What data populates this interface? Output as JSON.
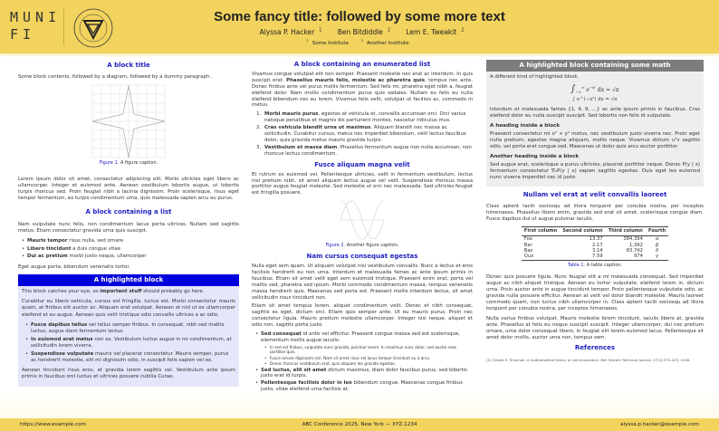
{
  "header": {
    "logo_line1": "MUNI",
    "logo_line2": "FI",
    "seal_text": "FACULTAS INFORMATICAE UNIVERSITATIS MASARYKIANAE BRUNENSIS",
    "title": "Some fancy title: followed by some more text",
    "authors": [
      {
        "name": "Alyssa P. Hacker",
        "aff": "1"
      },
      {
        "name": "Ben Bitdiddle",
        "aff": "2"
      },
      {
        "name": "Lem E. Tweakit",
        "aff": "2"
      }
    ],
    "institutes": [
      {
        "num": "1",
        "name": "Some Institute"
      },
      {
        "num": "2",
        "name": "Another Institute"
      }
    ]
  },
  "col1": {
    "block1": {
      "title": "A block title",
      "intro": "Some block contents, followed by a diagram, followed by a dummy paragraph.",
      "fig_label": "Figure 1.",
      "fig_caption": "A figure caption.",
      "para": "Lorem ipsum dolor sit amet, consectetur adipiscing elit. Morbi ultricies eget libero ac ullamcorper. Integer et euismod ante. Aenean vestibulum lobortis augue, ut lobortis turpis rhoncus sed. Proin feugiat nibh a lacinia dignissim. Proin scelerisque, risus eget tempor fermentum, ex turpis condimentum urna, quis malesuada sapien arcu eu purus."
    },
    "block2": {
      "title": "A block containing a list",
      "intro": "Nam vulputate nunc felis, non condimentum lacus porta ultrices. Nullam sed sagittis metus. Etiam consectetur gravida urna quis suscipit.",
      "items": [
        {
          "b": "Mauris tempor",
          "t": " risus nulla, sed ornare"
        },
        {
          "b": "Libero tincidunt",
          "t": " a duis congue vitae"
        },
        {
          "b": "Dui ac pretium",
          "t": " morbi justo neque, ullamcorper"
        }
      ],
      "outro": "Eget augue porta, bibendum venenatis tortor."
    },
    "hblock": {
      "title": "A highlighted block",
      "p1a": "This block catches your eye, so ",
      "p1b": "important stuff",
      "p1c": " should probably go here.",
      "p2": "Curabitur eu libero vehicula, cursus est fringilla, luctus est. Morbi consectetur mauris quam, at finibus elit auctor ac. Aliquam erat volutpat. Aenean at nisl ut ex ullamcorper eleifend et eu augue. Aenean quis velit tristique odio convallis ultrices a ac odio.",
      "items": [
        {
          "b": "Fusce dapibus tellus",
          "t": " vel tellus semper finibus. In consequat, nibh sed mattis luctus, augue diam fermentum lectus."
        },
        {
          "b": "In euismod erat metus",
          "t": " non ex. Vestibulum luctus augue in mi condimentum, at sollicitudin lorem viverra."
        },
        {
          "b": "Suspendisse vulputate",
          "t": " mauris vel placerat consectetur. Mauris semper, purus ac hendrerit molestie, elit mi dignissim odio, in suscipit felis sapien vel ex."
        }
      ],
      "p3": "Aenean tincidunt risus eros, at gravida lorem sagittis vel. Vestibulum ante ipsum primis in faucibus orci luctus et ultrices posuere cubilia Curae."
    }
  },
  "col2": {
    "block1": {
      "title": "A block containing an enumerated list",
      "pa": "Vivamus congue volutpat elit non semper. Praesent molestie nec erat ac interdum. In quis suscipit erat. ",
      "pb": "Phasellus mauris felis, molestie ac pharetra quis",
      "pc": ", tempus nec ante. Donec finibus ante vel purus mollis fermentum. Sed felis mi, pharetra eget nibh a, feugiat eleifend dolor. Nam mollis condimentum purus quis sodales. Nullam eu felis eu nulla eleifend bibendum nec eu lorem. Vivamus felis velit, volutpat ut facilisis ac, commodo in metus.",
      "items": [
        {
          "b": "Morbi mauris purus",
          "t": ", egestas at vehicula et, convallis accumsan orci. Orci varius natoque penatibus et magnis dis parturient montes, nascetur ridiculus mus."
        },
        {
          "b": "Cras vehicula blandit urna ut maximus",
          "t": ". Aliquam blandit nec massa ac sollicitudin. Curabitur cursus, metus nec imperdiet bibendum, velit lectus faucibus dolor, quis gravida metus mauris gravida turpis."
        },
        {
          "b": "Vestibulum et massa diam",
          "t": ". Phasellus fermentum augue non nulla accumsan, non rhoncus lectus condimentum."
        }
      ]
    },
    "block2": {
      "title": "Fusce aliquam magna velit",
      "para": "Et rutrum ex euismod vel. Pellentesque ultricies, velit in fermentum vestibulum, lectus nisi pretium nibh, sit amet aliquam lectus augue vel velit. Suspendisse rhoncus massa porttitor augue feugiat molestie. Sed molestie ut orci nec malesuada. Sed ultricies feugiat est fringilla posuere.",
      "fig_label": "Figure 2.",
      "fig_caption": "Another figure caption."
    },
    "block3": {
      "title": "Nam cursus consequat egestas",
      "p1": "Nulla eget sem quam. Ut aliquam volutpat nisi vestibulum convallis. Nunc a lectus et eros facilisis hendrerit eu non urna. Interdum et malesuada fames ac ante ipsum primis in faucibus. Etiam sit amet velit eget sem euismod tristique. Praesent enim erat, porta vel mattis sed, pharetra sed ipsum. Morbi commodo condimentum massa, tempus venenatis massa hendrerit quis. Maecenas sed porta est. Praesent mollis interdum lectus, sit amet sollicitudin risus tincidunt non.",
      "p2": "Etiam sit amet tempus lorem, aliquet condimentum velit. Donec et nibh consequat, sagittis ex eget, dictum orci. Etiam quis semper ante. Ut eu mauris purus. Proin nec consectetur ligula. Mauris pretium molestie ullamcorper. Integer nisi neque, aliquet et odio non, sagittis porta justo.",
      "items": [
        {
          "b": "Sed consequat",
          "t": " id ante vel efficitur. Praesent congue massa sed est scelerisque, elementum mollis augue iaculis.",
          "sub": [
            "In sed est finibus, vulputate nunc gravida, pulvinar lorem. In maximus nunc dolor, sed auctor eros porttitor quis.",
            "Fusce ornare dignissim nisi. Nam sit amet risus vel lacus tempor tincidunt eu a arcu.",
            "Donec rhoncus vestibulum erat, quis aliquam leo gravida egestas."
          ]
        },
        {
          "b": "Sed luctus, elit sit amet",
          "t": " dictum maximus, diam dolor faucibus purus, sed lobortis justo erat id turpis."
        },
        {
          "b": "Pellentesque facilisis dolor in leo",
          "t": " bibendum congue. Maecenas congue finibus justo, vitae eleifend urna facilisis at."
        }
      ]
    }
  },
  "col3": {
    "mathblock": {
      "title": "A highlighted block containing some math",
      "intro": "A different kind of highlighted block.",
      "equation": "∫ e^(−x²) dx = √π",
      "lower": "−∞",
      "upper": "∞",
      "integrand": "e",
      "exp": "−x²",
      "rest": "dx = √π",
      "p1": "Interdum et malesuada fames {1, 4, 9, …} ac ante ipsum primis in faucibus. Cras eleifend dolor eu nulla suscipit suscipit. Sed lobortis non felis id vulputate.",
      "h1": "A heading inside a block",
      "p2": "Praesent consectetur mi x² + y² metus, nec vestibulum justo viverra nec. Proin eget nulla pretium, egestas magna aliquam, mollis neque. Vivamus dictum uᵀv sagittis odio, vel porta erat congue sed. Maecenas ut dolor quis arcu auctor porttitor.",
      "h2": "Another heading inside a block",
      "p3": "Sed augue erat, scelerisque a purus ultricies, placerat porttitor neque. Donec P(y | x) fermentum consectetur ∇ₓP(y | x) sapien sagittis egestas. Duis eget leo euismod nunc viverra imperdiet nec id justo."
    },
    "block2": {
      "title": "Nullam vel erat at velit convallis laoreet",
      "p1": "Class aptent taciti sociosqu ad litora torquent per conubia nostra, per inceptos himenaeos. Phasellus libero enim, gravida sed erat sit amet, scelerisque congue diam. Fusce dapibus dui ut augue pulvinar iaculis.",
      "table": {
        "headers": [
          "First column",
          "Second column",
          "Third column",
          "Fourth"
        ],
        "rows": [
          [
            "Foo",
            "13.37",
            "384,394",
            "α"
          ],
          [
            "Bar",
            "2.17",
            "1,392",
            "β"
          ],
          [
            "Baz",
            "3.14",
            "83,742",
            "δ"
          ],
          [
            "Qux",
            "7.59",
            "974",
            "γ"
          ]
        ]
      },
      "table_label": "Table 1.",
      "table_caption": "A table caption.",
      "p2": "Donec quis posuere ligula. Nunc feugiat elit a mi malesuada consequat. Sed imperdiet augue ac nibh aliquet tristique. Aenean eu tortor vulputate, eleifend lorem in, dictum urna. Proin auctor ante in augue tincidunt tempor. Proin pellentesque vulputate odio, ac gravida nulla posuere efficitur. Aenean at velit vel dolor blandit molestie. Mauris laoreet commodo quam, non luctus nibh ullamcorper in. Class aptent taciti sociosqu ad litora torquent per conubia nostra, per inceptos himenaeos.",
      "p3": "Nulla varius finibus volutpat. Mauris molestie lorem tincidunt, iaculis libero at, gravida ante. Phasellus at felis eu neque suscipit suscipit. Integer ullamcorper, dui nec pretium ornare, urna dolor consequat libero, in feugiat elit lorem euismod lacus. Pellentesque sit amet dolor mollis, auctor urna non, tempus sem."
    },
    "refs": {
      "title": "References",
      "items": [
        "[1]  Claude E. Shannon. A mathematical theory of communication. Bell System Technical Journal, 27(3):379–423, 1948."
      ]
    }
  },
  "footer": {
    "left": "https://www.example.com",
    "center": "ABC Conference 2025, New York — XYZ-1234",
    "right": "alyssa.p.hacker@example.com"
  },
  "colors": {
    "header": "#f2d35e",
    "title_blue": "#2222c0",
    "highlight_header": "#0000dd",
    "highlight_body": "#e6e6fa",
    "math_header": "#7d7d7d",
    "math_body": "#eeeeee"
  }
}
